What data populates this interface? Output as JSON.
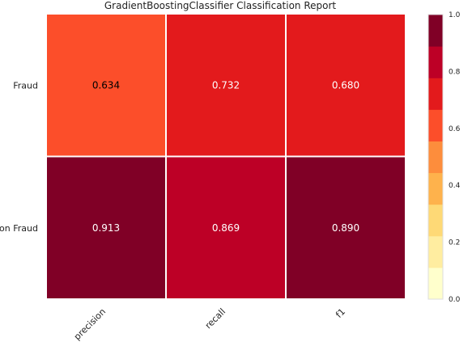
{
  "chart_data": {
    "type": "heatmap",
    "title": "GradientBoostingClassifier Classification Report",
    "rows": [
      "Fraud",
      "Non Fraud"
    ],
    "columns": [
      "precision",
      "recall",
      "f1"
    ],
    "values": [
      [
        0.634,
        0.732,
        0.68
      ],
      [
        0.913,
        0.869,
        0.89
      ]
    ],
    "value_labels": [
      [
        "0.634",
        "0.732",
        "0.680"
      ],
      [
        "0.913",
        "0.869",
        "0.890"
      ]
    ],
    "colorbar": {
      "range": [
        0.0,
        1.0
      ],
      "ticks": [
        "0.0",
        "0.2",
        "0.4",
        "0.6",
        "0.8",
        "1.0"
      ],
      "colors": [
        "#ffffcc",
        "#ffeda0",
        "#fed976",
        "#feb24c",
        "#fd8d3c",
        "#fc4e2a",
        "#e31a1c",
        "#bd0026",
        "#800026"
      ]
    },
    "cell_label_colors": {
      "dark_background": "#ffffff",
      "light_background": "#000000"
    },
    "grid_line_color": "#ffffff"
  }
}
